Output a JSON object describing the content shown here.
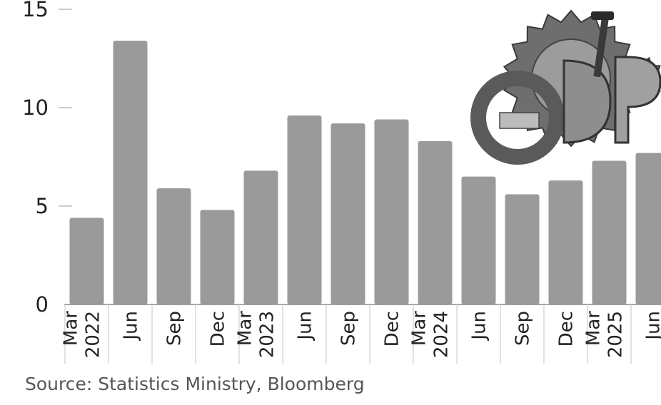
{
  "source": "Source: Statistics Ministry, Bloomberg",
  "illustration": "gdp-gears-illustration",
  "colors": {
    "bar": "#9a9a9a",
    "axis": "#bdbdbd",
    "text": "#222222",
    "source": "#555555"
  },
  "chart_data": {
    "type": "bar",
    "title": "",
    "xlabel": "",
    "ylabel": "",
    "ylim": [
      0,
      15
    ],
    "yticks": [
      "0",
      "5",
      "10",
      "15"
    ],
    "grid": false,
    "categories": [
      {
        "label": "Mar",
        "year": "2022"
      },
      {
        "label": "Jun",
        "year": ""
      },
      {
        "label": "Sep",
        "year": ""
      },
      {
        "label": "Dec",
        "year": ""
      },
      {
        "label": "Mar",
        "year": "2023"
      },
      {
        "label": "Jun",
        "year": ""
      },
      {
        "label": "Sep",
        "year": ""
      },
      {
        "label": "Dec",
        "year": ""
      },
      {
        "label": "Mar",
        "year": "2024"
      },
      {
        "label": "Jun",
        "year": ""
      },
      {
        "label": "Sep",
        "year": ""
      },
      {
        "label": "Dec",
        "year": ""
      },
      {
        "label": "Mar",
        "year": "2025"
      },
      {
        "label": "Jun",
        "year": ""
      }
    ],
    "values": [
      4.4,
      13.4,
      5.9,
      4.8,
      6.8,
      9.6,
      9.2,
      9.4,
      8.3,
      6.5,
      5.6,
      6.3,
      7.3,
      7.7
    ]
  }
}
